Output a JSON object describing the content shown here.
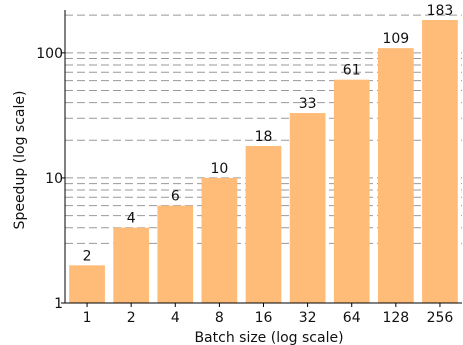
{
  "chart_data": {
    "type": "bar",
    "categories": [
      "1",
      "2",
      "4",
      "8",
      "16",
      "32",
      "64",
      "128",
      "256"
    ],
    "values": [
      2,
      4,
      6,
      10,
      18,
      33,
      61,
      109,
      183
    ],
    "data_labels": [
      "2",
      "4",
      "6",
      "10",
      "18",
      "33",
      "61",
      "109",
      "183"
    ],
    "xlabel": "Batch size (log scale)",
    "ylabel": "Speedup (log scale)",
    "ylim": [
      1,
      220
    ],
    "yscale": "log",
    "y_ticks": [
      1,
      10,
      100
    ],
    "y_tick_labels": [
      "1",
      "10",
      "100"
    ],
    "y_minor_gridlines": [
      3,
      4,
      5,
      6,
      7,
      8,
      9,
      20,
      30,
      40,
      50,
      60,
      70,
      80,
      90,
      200
    ],
    "grid": "horizontal dashed, major and minor",
    "legend": "none",
    "bar_color": "#ffbb78",
    "grid_color": "#999999"
  }
}
